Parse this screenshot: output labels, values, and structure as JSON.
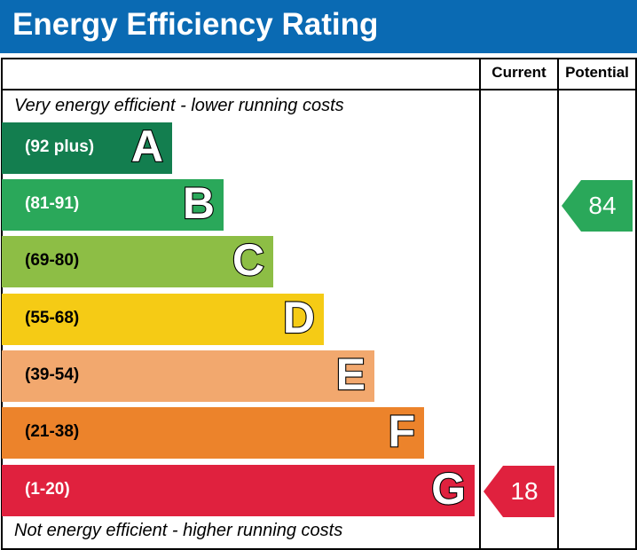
{
  "title": "Energy Efficiency Rating",
  "columns": {
    "current": "Current",
    "potential": "Potential"
  },
  "captions": {
    "top": "Very energy efficient - lower running costs",
    "bottom": "Not energy efficient - higher running costs"
  },
  "chart_data": {
    "type": "bar",
    "categories": [
      "A",
      "B",
      "C",
      "D",
      "E",
      "F",
      "G"
    ],
    "ranges": [
      "(92 plus)",
      "(81-91)",
      "(69-80)",
      "(55-68)",
      "(39-54)",
      "(21-38)",
      "(1-20)"
    ],
    "colors": [
      "#137e4f",
      "#2aa85a",
      "#8dbe45",
      "#f5cb15",
      "#f2a86e",
      "#ec832b",
      "#e0213e"
    ],
    "current": {
      "value": 18,
      "band": "G",
      "color": "#e0213e"
    },
    "potential": {
      "value": 84,
      "band": "B",
      "color": "#2aa85a"
    }
  }
}
